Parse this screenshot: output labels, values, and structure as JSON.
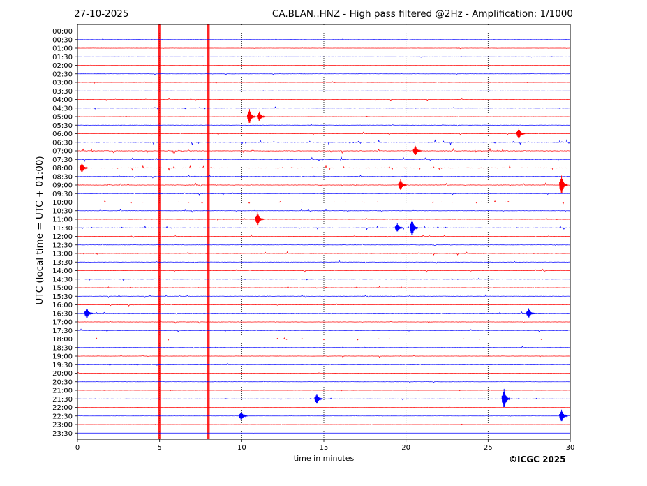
{
  "header": {
    "date": "27-10-2025",
    "title": "CA.BLAN..HNZ - High pass filtered @2Hz - Amplification: 1/1000"
  },
  "footer": {
    "copyright": "©ICGC 2025"
  },
  "colors": {
    "odd_trace": "#ff0000",
    "even_trace": "#0000ff",
    "grid": "#000000",
    "background": "#ffffff"
  },
  "chart_data": {
    "type": "line",
    "title": "CA.BLAN..HNZ - High pass filtered @2Hz - Amplification: 1/1000",
    "xlabel": "time in minutes",
    "ylabel": "UTC (local time = UTC + 01:00)",
    "xlim": [
      0,
      30
    ],
    "x_ticks": [
      0,
      5,
      10,
      15,
      20,
      25,
      30
    ],
    "grid": "dotted vertical lines at 5-minute ticks",
    "row_labels": [
      "00:00",
      "00:30",
      "01:00",
      "01:30",
      "02:00",
      "02:30",
      "03:00",
      "03:30",
      "04:00",
      "04:30",
      "05:00",
      "05:30",
      "06:00",
      "06:30",
      "07:00",
      "07:30",
      "08:00",
      "08:30",
      "09:00",
      "09:30",
      "10:00",
      "10:30",
      "11:00",
      "11:30",
      "12:00",
      "12:30",
      "13:00",
      "13:30",
      "14:00",
      "14:30",
      "15:00",
      "15:30",
      "16:00",
      "16:30",
      "17:00",
      "17:30",
      "18:00",
      "18:30",
      "19:00",
      "19:30",
      "20:00",
      "20:30",
      "21:00",
      "21:30",
      "22:00",
      "22:30",
      "23:00",
      "23:30"
    ],
    "trace_color_order": [
      "red",
      "blue"
    ],
    "noise_level": [
      0.2,
      0.4,
      0.3,
      0.3,
      0.3,
      0.4,
      0.4,
      0.3,
      0.4,
      0.5,
      0.4,
      0.5,
      0.6,
      1.0,
      1.0,
      0.9,
      0.9,
      0.7,
      0.8,
      0.6,
      0.7,
      0.6,
      0.6,
      0.7,
      0.6,
      0.6,
      0.7,
      0.6,
      0.6,
      0.6,
      0.6,
      0.6,
      0.6,
      0.6,
      0.6,
      0.6,
      0.5,
      0.5,
      0.5,
      0.5,
      0.4,
      0.4,
      0.3,
      0.4,
      0.3,
      0.3,
      0.2,
      0.1
    ],
    "continuous_bands": [
      {
        "start_min": 4.9,
        "end_min": 5.05,
        "from_row": "00:00",
        "to_row": "23:30"
      },
      {
        "start_min": 7.9,
        "end_min": 8.05,
        "from_row": "00:00",
        "to_row": "23:30"
      }
    ],
    "events": [
      {
        "row": "05:00",
        "minute": 10.6,
        "amplitude": 1.2
      },
      {
        "row": "05:00",
        "minute": 11.2,
        "amplitude": 0.8
      },
      {
        "row": "06:00",
        "minute": 27.0,
        "amplitude": 0.9
      },
      {
        "row": "07:00",
        "minute": 20.7,
        "amplitude": 0.8
      },
      {
        "row": "08:00",
        "minute": 0.4,
        "amplitude": 0.8
      },
      {
        "row": "09:00",
        "minute": 19.8,
        "amplitude": 0.9
      },
      {
        "row": "09:00",
        "minute": 29.6,
        "amplitude": 1.5
      },
      {
        "row": "11:00",
        "minute": 11.1,
        "amplitude": 1.1
      },
      {
        "row": "11:30",
        "minute": 20.5,
        "amplitude": 1.4
      },
      {
        "row": "11:30",
        "minute": 19.6,
        "amplitude": 0.7
      },
      {
        "row": "16:30",
        "minute": 0.7,
        "amplitude": 0.9
      },
      {
        "row": "16:30",
        "minute": 27.6,
        "amplitude": 0.8
      },
      {
        "row": "21:30",
        "minute": 26.1,
        "amplitude": 1.6
      },
      {
        "row": "21:30",
        "minute": 14.7,
        "amplitude": 0.8
      },
      {
        "row": "22:30",
        "minute": 29.6,
        "amplitude": 1.0
      },
      {
        "row": "22:30",
        "minute": 10.1,
        "amplitude": 0.7
      }
    ]
  }
}
